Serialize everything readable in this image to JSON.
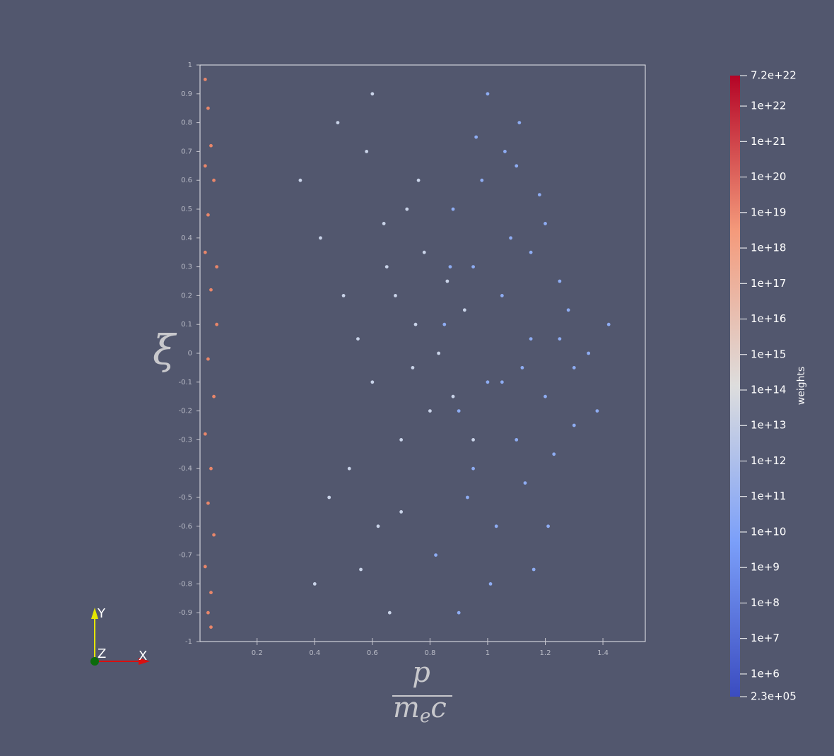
{
  "chart_data": {
    "type": "scatter",
    "ylabel": "ξ",
    "xlabel_numerator": "p",
    "xlabel_denominator": "m",
    "xlabel_subscript": "e",
    "xlabel_tail": "c",
    "xlim": [
      0.002,
      1.547
    ],
    "ylim": [
      -1,
      1
    ],
    "xticks": [
      0.2,
      0.4,
      0.6,
      0.8,
      1,
      1.2,
      1.4
    ],
    "yticks": [
      -1,
      -0.9,
      -0.8,
      -0.7,
      -0.6,
      -0.5,
      -0.4,
      -0.3,
      -0.2,
      -0.1,
      0,
      0.1,
      0.2,
      0.3,
      0.4,
      0.5,
      0.6,
      0.7,
      0.8,
      0.9,
      1
    ],
    "series": [
      {
        "color": "#e8866a",
        "x": [
          0.02,
          0.03,
          0.04,
          0.05,
          0.03,
          0.02,
          0.04,
          0.06,
          0.03,
          0.05,
          0.02,
          0.04,
          0.03,
          0.05,
          0.02,
          0.04,
          0.03,
          0.06,
          0.02,
          0.04
        ],
        "values": [
          0.95,
          0.85,
          0.72,
          0.6,
          0.48,
          0.35,
          0.22,
          0.1,
          -0.02,
          -0.15,
          -0.28,
          -0.4,
          -0.52,
          -0.63,
          -0.74,
          -0.83,
          -0.9,
          0.3,
          0.65,
          -0.95
        ]
      },
      {
        "color": "#c9d3e8",
        "x": [
          0.35,
          0.42,
          0.5,
          0.55,
          0.6,
          0.65,
          0.7,
          0.72,
          0.75,
          0.8,
          0.45,
          0.52,
          0.58,
          0.62,
          0.68,
          0.74,
          0.78,
          0.83,
          0.88,
          0.92,
          0.48,
          0.56,
          0.64,
          0.7,
          0.76,
          0.4,
          0.6,
          0.66,
          0.86,
          0.95
        ],
        "values": [
          0.6,
          0.4,
          0.2,
          0.05,
          -0.1,
          0.3,
          -0.3,
          0.5,
          0.1,
          -0.2,
          -0.5,
          -0.4,
          0.7,
          -0.6,
          0.2,
          -0.05,
          0.35,
          0.0,
          -0.15,
          0.15,
          0.8,
          -0.75,
          0.45,
          -0.55,
          0.6,
          -0.8,
          0.9,
          -0.9,
          0.25,
          -0.3
        ]
      },
      {
        "color": "#8eacf2",
        "x": [
          0.85,
          0.9,
          0.95,
          1.0,
          1.05,
          1.1,
          1.15,
          1.2,
          1.25,
          1.3,
          0.88,
          0.93,
          0.98,
          1.03,
          1.08,
          1.13,
          1.18,
          1.23,
          1.28,
          1.35,
          0.82,
          0.96,
          1.01,
          1.06,
          1.11,
          1.16,
          1.21,
          0.9,
          1.0,
          1.1,
          1.2,
          1.3,
          0.95,
          1.05,
          1.15,
          1.25,
          1.38,
          0.87,
          1.12,
          1.42
        ],
        "values": [
          0.1,
          -0.2,
          0.3,
          -0.1,
          0.2,
          -0.3,
          0.05,
          -0.15,
          0.25,
          -0.05,
          0.5,
          -0.5,
          0.6,
          -0.6,
          0.4,
          -0.45,
          0.55,
          -0.35,
          0.15,
          0.0,
          -0.7,
          0.75,
          -0.8,
          0.7,
          0.8,
          -0.75,
          -0.6,
          -0.9,
          0.9,
          0.65,
          0.45,
          -0.25,
          -0.4,
          -0.1,
          0.35,
          0.05,
          -0.2,
          0.3,
          -0.05,
          0.1
        ]
      }
    ],
    "colorbar_title": "weights",
    "colorbar_log": true,
    "colorbar_lim": [
      230000,
      7.2e+22
    ],
    "colorbar_ticks": [
      {
        "value": 230000,
        "label": "2.3e+05"
      },
      {
        "value": 1000000.0,
        "label": "1e+6"
      },
      {
        "value": 10000000.0,
        "label": "1e+7"
      },
      {
        "value": 100000000.0,
        "label": "1e+8"
      },
      {
        "value": 1000000000.0,
        "label": "1e+9"
      },
      {
        "value": 10000000000.0,
        "label": "1e+10"
      },
      {
        "value": 100000000000.0,
        "label": "1e+11"
      },
      {
        "value": 1000000000000.0,
        "label": "1e+12"
      },
      {
        "value": 10000000000000.0,
        "label": "1e+13"
      },
      {
        "value": 100000000000000.0,
        "label": "1e+14"
      },
      {
        "value": 1000000000000000.0,
        "label": "1e+15"
      },
      {
        "value": 1e+16,
        "label": "1e+16"
      },
      {
        "value": 1e+17,
        "label": "1e+17"
      },
      {
        "value": 1e+18,
        "label": "1e+18"
      },
      {
        "value": 1e+19,
        "label": "1e+19"
      },
      {
        "value": 1e+20,
        "label": "1e+20"
      },
      {
        "value": 1e+21,
        "label": "1e+21"
      },
      {
        "value": 1e+22,
        "label": "1e+22"
      },
      {
        "value": 7.2e+22,
        "label": "7.2e+22"
      }
    ],
    "orientation_labels": {
      "y": "Y",
      "z": "Z",
      "x": "X"
    }
  }
}
